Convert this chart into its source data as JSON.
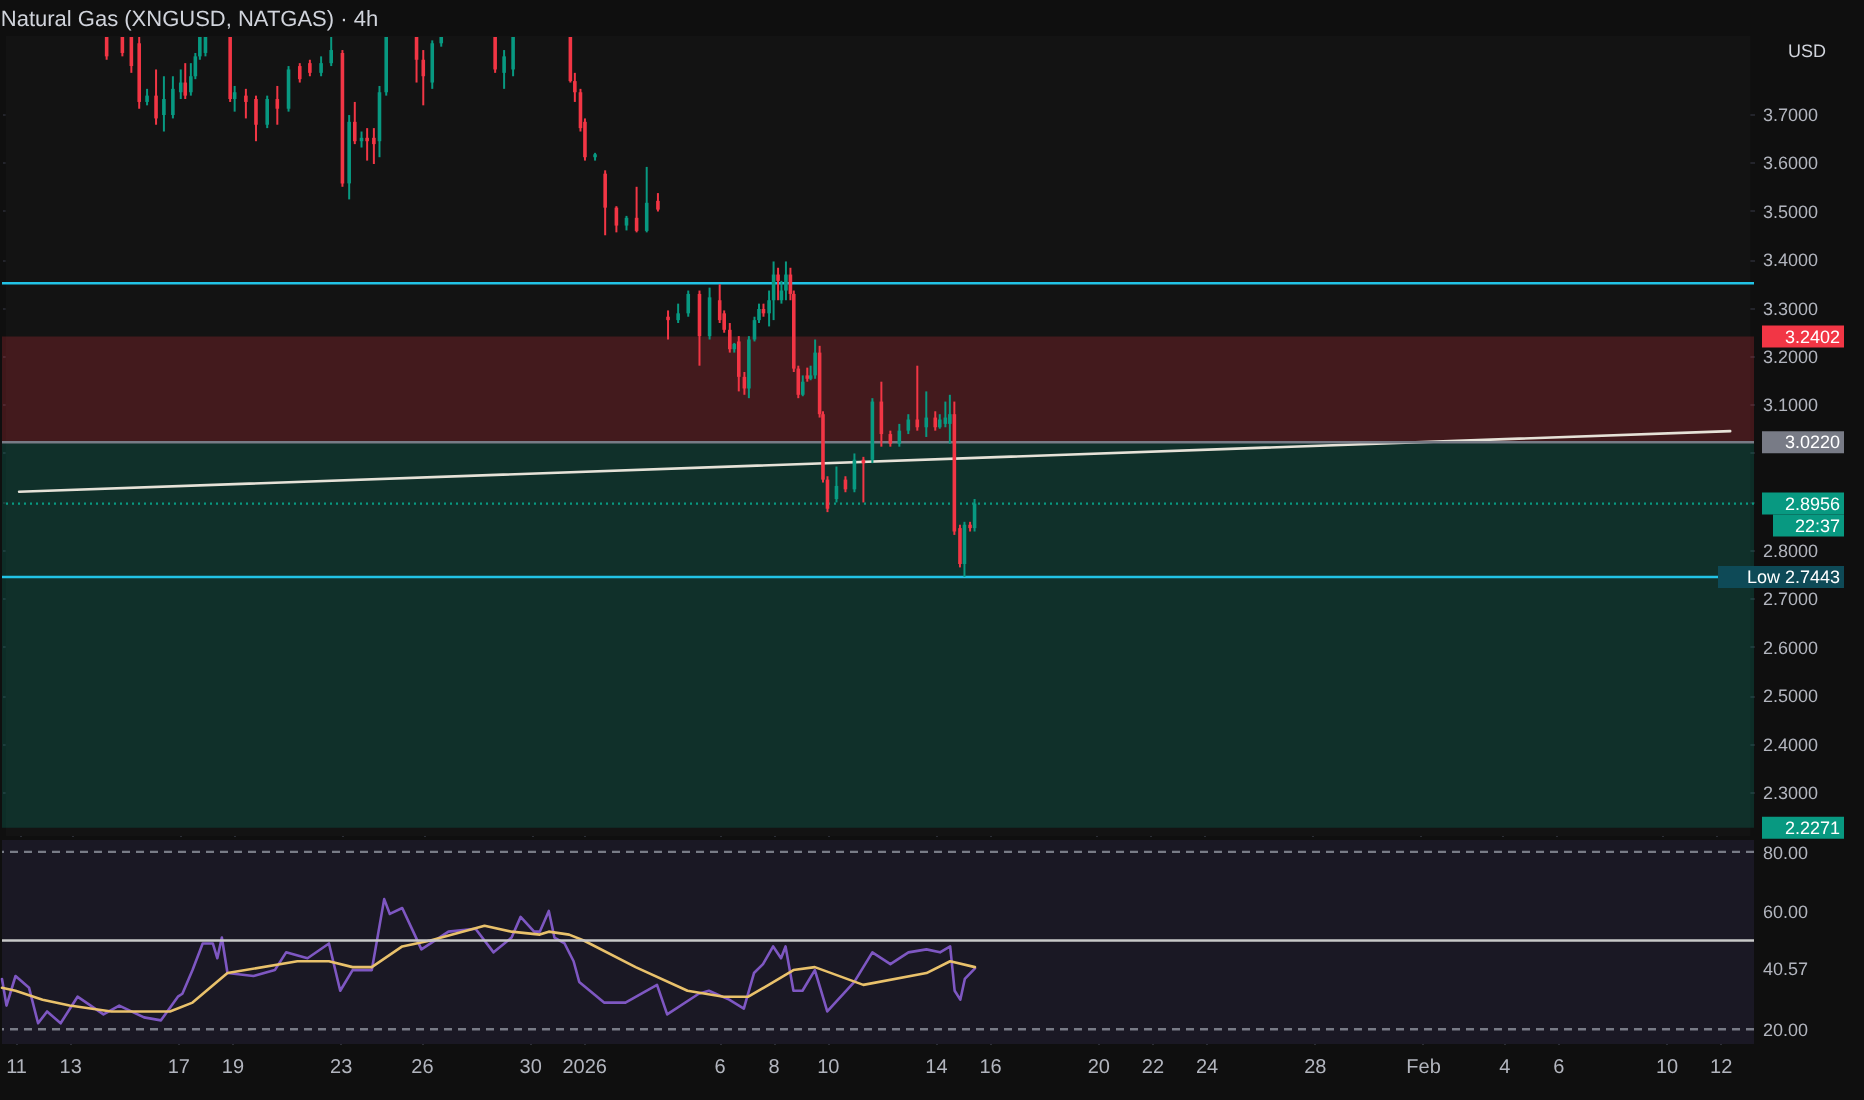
{
  "chart_data": [
    {
      "type": "candlestick",
      "title": "Natural Gas (XNGUSD, NATGAS) · 4h",
      "ylabel": "USD",
      "grid": true,
      "tick_labels": "y",
      "xlim": [
        "2025-12-10T12:00",
        "2026-02-13T06:00"
      ],
      "ylim": [
        2.21,
        3.86
      ],
      "xticks": [
        {
          "value": "2025-12-11",
          "label": null
        },
        {
          "value": "2025-12-13",
          "label": null
        },
        {
          "value": "2025-12-17",
          "label": null
        },
        {
          "value": "2025-12-19",
          "label": null
        },
        {
          "value": "2025-12-23",
          "label": null
        },
        {
          "value": "2025-12-26",
          "label": null
        },
        {
          "value": "2025-12-30",
          "label": null
        },
        {
          "value": "2026-01-01",
          "label": null
        },
        {
          "value": "2026-01-06",
          "label": null
        },
        {
          "value": "2026-01-08",
          "label": null
        },
        {
          "value": "2026-01-10",
          "label": null
        },
        {
          "value": "2026-01-14",
          "label": null
        },
        {
          "value": "2026-01-16",
          "label": null
        },
        {
          "value": "2026-01-20",
          "label": null
        },
        {
          "value": "2026-01-22",
          "label": null
        },
        {
          "value": "2026-01-24",
          "label": null
        },
        {
          "value": "2026-01-28",
          "label": null
        },
        {
          "value": "2026-02-01",
          "label": null
        },
        {
          "value": "2026-02-04",
          "label": null
        },
        {
          "value": "2026-02-06",
          "label": null
        },
        {
          "value": "2026-02-10",
          "label": null
        },
        {
          "value": "2026-02-12",
          "label": null
        }
      ],
      "yticks": [
        {
          "value": 2.3,
          "label": "2.3000"
        },
        {
          "value": 2.4,
          "label": "2.4000"
        },
        {
          "value": 2.5,
          "label": "2.5000"
        },
        {
          "value": 2.6,
          "label": "2.6000"
        },
        {
          "value": 2.7,
          "label": "2.7000"
        },
        {
          "value": 2.8,
          "label": "2.8000"
        },
        {
          "value": 2.9,
          "label": null
        },
        {
          "value": 3.0,
          "label": null
        },
        {
          "value": 3.1,
          "label": "3.1000"
        },
        {
          "value": 3.2,
          "label": "3.2000"
        },
        {
          "value": 3.3,
          "label": "3.3000"
        },
        {
          "value": 3.4,
          "label": "3.4000"
        },
        {
          "value": 3.5,
          "label": "3.5000"
        },
        {
          "value": 3.6,
          "label": "3.6000"
        },
        {
          "value": 3.7,
          "label": "3.7000"
        }
      ],
      "x": [
        "2025-12-14T06:00",
        "2025-12-14T20:00",
        "2025-12-15T04:00",
        "2025-12-15T11:00",
        "2025-12-15T18:00",
        "2025-12-16T02:00",
        "2025-12-16T09:00",
        "2025-12-16T17:00",
        "2025-12-17T00:00",
        "2025-12-17T04:00",
        "2025-12-17T09:00",
        "2025-12-17T13:00",
        "2025-12-17T17:00",
        "2025-12-17T22:00",
        "2025-12-18T20:00",
        "2025-12-19T00:00",
        "2025-12-19T10:00",
        "2025-12-19T19:00",
        "2025-12-20T05:00",
        "2025-12-20T14:00",
        "2025-12-21T00:00",
        "2025-12-21T10:00",
        "2025-12-21T19:00",
        "2025-12-22T05:00",
        "2025-12-22T14:00",
        "2025-12-23T00:00",
        "2025-12-23T06:00",
        "2025-12-23T11:00",
        "2025-12-23T17:00",
        "2025-12-23T22:00",
        "2025-12-24T04:00",
        "2025-12-24T09:00",
        "2025-12-24T15:00",
        "2025-12-25T18:00",
        "2025-12-26T00:00",
        "2025-12-26T08:00",
        "2025-12-26T16:00",
        "2025-12-28T16:00",
        "2025-12-29T00:00",
        "2025-12-29T08:00",
        "2025-12-31T11:00",
        "2025-12-31T15:00",
        "2025-12-31T20:00",
        "2026-01-01T00:00",
        "2026-01-01T09:00",
        "2026-01-01T18:00",
        "2026-01-02T04:00",
        "2026-01-02T13:00",
        "2026-01-02T22:00",
        "2026-01-03T07:00",
        "2026-01-03T17:00",
        "2026-01-04T02:00",
        "2026-01-04T11:00",
        "2026-01-04T20:00",
        "2026-01-05T06:00",
        "2026-01-05T15:00",
        "2026-01-06T00:00",
        "2026-01-06T04:00",
        "2026-01-06T09:00",
        "2026-01-06T13:00",
        "2026-01-06T17:00",
        "2026-01-06T22:00",
        "2026-01-07T02:00",
        "2026-01-07T07:00",
        "2026-01-07T11:00",
        "2026-01-07T15:00",
        "2026-01-07T20:00",
        "2026-01-08T00:00",
        "2026-01-08T04:00",
        "2026-01-08T07:00",
        "2026-01-08T11:00",
        "2026-01-08T15:00",
        "2026-01-08T18:00",
        "2026-01-08T22:00",
        "2026-01-09T02:00",
        "2026-01-09T06:00",
        "2026-01-09T09:00",
        "2026-01-09T13:00",
        "2026-01-09T17:00",
        "2026-01-09T20:00",
        "2026-01-10T00:00",
        "2026-01-10T08:00",
        "2026-01-10T16:00",
        "2026-01-11T00:00",
        "2026-01-11T08:00",
        "2026-01-11T16:00",
        "2026-01-12T00:00",
        "2026-01-12T08:00",
        "2026-01-12T16:00",
        "2026-01-13T00:00",
        "2026-01-13T08:00",
        "2026-01-13T16:00",
        "2026-01-14T00:00",
        "2026-01-14T04:00",
        "2026-01-14T09:00",
        "2026-01-14T13:00",
        "2026-01-14T17:00",
        "2026-01-14T22:00",
        "2026-01-15T02:00",
        "2026-01-15T07:00",
        "2026-01-15T11:00"
      ],
      "ohlc": [
        [
          3.858,
          3.858,
          3.811,
          3.818
        ],
        [
          3.858,
          3.858,
          3.818,
          3.825
        ],
        [
          3.858,
          3.858,
          3.784,
          3.798
        ],
        [
          3.845,
          3.858,
          3.71,
          3.724
        ],
        [
          3.724,
          3.751,
          3.717,
          3.737
        ],
        [
          3.737,
          3.791,
          3.677,
          3.69
        ],
        [
          3.697,
          3.777,
          3.663,
          3.73
        ],
        [
          3.697,
          3.777,
          3.69,
          3.751
        ],
        [
          3.744,
          3.791,
          3.73,
          3.764
        ],
        [
          3.764,
          3.804,
          3.73,
          3.737
        ],
        [
          3.744,
          3.804,
          3.737,
          3.777
        ],
        [
          3.777,
          3.825,
          3.771,
          3.818
        ],
        [
          3.818,
          3.858,
          3.811,
          3.858
        ],
        [
          3.825,
          3.858,
          3.818,
          3.858
        ],
        [
          3.858,
          3.858,
          3.724,
          3.73
        ],
        [
          3.73,
          3.757,
          3.704,
          3.744
        ],
        [
          3.737,
          3.751,
          3.69,
          3.724
        ],
        [
          3.73,
          3.737,
          3.643,
          3.677
        ],
        [
          3.677,
          3.737,
          3.67,
          3.73
        ],
        [
          3.73,
          3.757,
          3.677,
          3.71
        ],
        [
          3.71,
          3.798,
          3.704,
          3.791
        ],
        [
          3.798,
          3.804,
          3.764,
          3.771
        ],
        [
          3.804,
          3.811,
          3.777,
          3.784
        ],
        [
          3.784,
          3.818,
          3.777,
          3.804
        ],
        [
          3.804,
          3.858,
          3.798,
          3.831
        ],
        [
          3.825,
          3.831,
          3.549,
          3.556
        ],
        [
          3.556,
          3.697,
          3.523,
          3.683
        ],
        [
          3.683,
          3.724,
          3.637,
          3.643
        ],
        [
          3.643,
          3.663,
          3.63,
          3.65
        ],
        [
          3.65,
          3.67,
          3.603,
          3.643
        ],
        [
          3.65,
          3.67,
          3.596,
          3.637
        ],
        [
          3.643,
          3.757,
          3.61,
          3.744
        ],
        [
          3.744,
          3.858,
          3.737,
          3.858
        ],
        [
          3.858,
          3.858,
          3.764,
          3.811
        ],
        [
          3.811,
          3.831,
          3.717,
          3.777
        ],
        [
          3.764,
          3.851,
          3.751,
          3.845
        ],
        [
          3.845,
          3.858,
          3.838,
          3.858
        ],
        [
          3.858,
          3.858,
          3.784,
          3.791
        ],
        [
          3.784,
          3.831,
          3.751,
          3.818
        ],
        [
          3.791,
          3.858,
          3.777,
          3.858
        ],
        [
          3.858,
          3.858,
          3.764,
          3.767
        ],
        [
          3.767,
          3.784,
          3.724,
          3.744
        ],
        [
          3.744,
          3.751,
          3.663,
          3.67
        ],
        [
          3.683,
          3.69,
          3.603,
          3.61
        ],
        [
          3.61,
          3.619,
          3.603,
          3.616
        ],
        [
          3.576,
          3.583,
          3.449,
          3.506
        ],
        [
          3.506,
          3.509,
          3.455,
          3.469
        ],
        [
          3.469,
          3.489,
          3.459,
          3.485
        ],
        [
          3.485,
          3.549,
          3.455,
          3.458
        ],
        [
          3.458,
          3.59,
          3.455,
          3.516
        ],
        [
          3.52,
          3.536,
          3.498,
          3.502
        ],
        [
          3.281,
          3.294,
          3.234,
          3.274
        ],
        [
          3.274,
          3.308,
          3.268,
          3.288
        ],
        [
          3.288,
          3.335,
          3.281,
          3.328
        ],
        [
          3.328,
          3.335,
          3.18,
          3.241
        ],
        [
          3.241,
          3.341,
          3.234,
          3.321
        ],
        [
          3.315,
          3.348,
          3.268,
          3.274
        ],
        [
          3.288,
          3.294,
          3.248,
          3.254
        ],
        [
          3.254,
          3.268,
          3.207,
          3.214
        ],
        [
          3.214,
          3.227,
          3.207,
          3.225
        ],
        [
          3.23,
          3.241,
          3.127,
          3.157
        ],
        [
          3.157,
          3.167,
          3.12,
          3.133
        ],
        [
          3.133,
          3.241,
          3.113,
          3.234
        ],
        [
          3.234,
          3.281,
          3.23,
          3.274
        ],
        [
          3.274,
          3.308,
          3.268,
          3.297
        ],
        [
          3.297,
          3.308,
          3.281,
          3.288
        ],
        [
          3.288,
          3.335,
          3.261,
          3.315
        ],
        [
          3.315,
          3.395,
          3.274,
          3.368
        ],
        [
          3.368,
          3.382,
          3.315,
          3.355
        ],
        [
          3.315,
          3.355,
          3.308,
          3.335
        ],
        [
          3.335,
          3.395,
          3.315,
          3.368
        ],
        [
          3.368,
          3.382,
          3.315,
          3.328
        ],
        [
          3.328,
          3.335,
          3.167,
          3.174
        ],
        [
          3.174,
          3.18,
          3.113,
          3.12
        ],
        [
          3.12,
          3.16,
          3.117,
          3.147
        ],
        [
          3.16,
          3.176,
          3.147,
          3.153
        ],
        [
          3.153,
          3.18,
          3.15,
          3.16
        ],
        [
          3.16,
          3.234,
          3.153,
          3.207
        ],
        [
          3.207,
          3.221,
          3.073,
          3.08
        ],
        [
          3.08,
          3.086,
          2.939,
          2.945
        ],
        [
          2.945,
          2.952,
          2.878,
          2.885
        ],
        [
          2.905,
          2.972,
          2.898,
          2.932
        ],
        [
          2.945,
          2.952,
          2.919,
          2.925
        ],
        [
          2.925,
          2.999,
          2.919,
          2.986
        ],
        [
          2.986,
          2.992,
          2.898,
          2.979
        ],
        [
          2.986,
          3.113,
          2.979,
          3.106
        ],
        [
          3.106,
          3.147,
          3.013,
          3.039
        ],
        [
          3.039,
          3.046,
          3.013,
          3.019
        ],
        [
          3.019,
          3.06,
          3.013,
          3.046
        ],
        [
          3.046,
          3.08,
          3.039,
          3.069
        ],
        [
          3.069,
          3.18,
          3.046,
          3.053
        ],
        [
          3.053,
          3.127,
          3.033,
          3.073
        ],
        [
          3.073,
          3.086,
          3.046,
          3.053
        ],
        [
          3.053,
          3.08,
          3.05,
          3.069
        ],
        [
          3.06,
          3.106,
          3.053,
          3.073
        ],
        [
          3.06,
          3.12,
          3.019,
          3.08
        ],
        [
          3.08,
          3.106,
          2.831,
          2.838
        ],
        [
          2.845,
          2.852,
          2.764,
          2.771
        ],
        [
          2.771,
          2.858,
          2.7443,
          2.852
        ],
        [
          2.852,
          2.858,
          2.838,
          2.845
        ],
        [
          2.845,
          2.905,
          2.838,
          2.8956
        ]
      ],
      "series": [
        {
          "type": "line",
          "x": [
            "2025-12-11T00:00",
            "2026-02-12T12:00"
          ],
          "values": [
            2.92,
            3.045
          ],
          "color": "#e6e2d8"
        }
      ],
      "bands": [
        {
          "axis": "y",
          "from": 3.022,
          "to": 3.2402,
          "label": "3.2402",
          "color": "#f23645"
        },
        {
          "axis": "y",
          "from": 3.022,
          "to": 2.2271,
          "label": "2.2271",
          "color": "#089981"
        }
      ],
      "ref_lines": [
        {
          "axis": "y",
          "value": 3.35,
          "color": "#22c3e6"
        },
        {
          "axis": "y",
          "value": 2.7443,
          "label": "Low 2.7443",
          "color": "#22c3e6"
        },
        {
          "axis": "y",
          "value": 3.022,
          "label": "3.0220",
          "color": "#787b86"
        },
        {
          "axis": "y",
          "value": 2.8956,
          "label": "2.8956",
          "color": "#089981",
          "line_style": "dotted"
        }
      ],
      "annotations": [
        "22:37"
      ]
    },
    {
      "type": "line",
      "grid": "x",
      "xlim": [
        "2025-12-10T12:00",
        "2026-02-13T06:00"
      ],
      "ylim": [
        15,
        84
      ],
      "xticks": [
        {
          "value": "2025-12-11",
          "label": "11"
        },
        {
          "value": "2025-12-13",
          "label": "13"
        },
        {
          "value": "2025-12-17",
          "label": "17"
        },
        {
          "value": "2025-12-19",
          "label": "19"
        },
        {
          "value": "2025-12-23",
          "label": "23"
        },
        {
          "value": "2025-12-26",
          "label": "26"
        },
        {
          "value": "2025-12-30",
          "label": "30"
        },
        {
          "value": "2026-01-01",
          "label": "2026"
        },
        {
          "value": "2026-01-06",
          "label": "6"
        },
        {
          "value": "2026-01-08",
          "label": "8"
        },
        {
          "value": "2026-01-10",
          "label": "10"
        },
        {
          "value": "2026-01-14",
          "label": "14"
        },
        {
          "value": "2026-01-16",
          "label": "16"
        },
        {
          "value": "2026-01-20",
          "label": "20"
        },
        {
          "value": "2026-01-22",
          "label": "22"
        },
        {
          "value": "2026-01-24",
          "label": "24"
        },
        {
          "value": "2026-01-28",
          "label": "28"
        },
        {
          "value": "2026-02-01",
          "label": "Feb"
        },
        {
          "value": "2026-02-04",
          "label": "4"
        },
        {
          "value": "2026-02-06",
          "label": "6"
        },
        {
          "value": "2026-02-10",
          "label": "10"
        },
        {
          "value": "2026-02-12",
          "label": "12"
        }
      ],
      "yticks": [
        {
          "value": 20,
          "label": "20.00"
        },
        {
          "value": 40.57,
          "label": "40.57"
        },
        {
          "value": 60,
          "label": "60.00"
        },
        {
          "value": 80,
          "label": "80.00"
        }
      ],
      "x": [
        "2025-12-10T12:00",
        "2025-12-10T16:00",
        "2025-12-11T00:00",
        "2025-12-11T12:00",
        "2025-12-11T20:00",
        "2025-12-12T04:00",
        "2025-12-12T16:00",
        "2025-12-13T07:00",
        "2025-12-14T06:00",
        "2025-12-14T20:00",
        "2025-12-15T18:00",
        "2025-12-16T09:00",
        "2025-12-17T00:00",
        "2025-12-17T04:00",
        "2025-12-17T13:00",
        "2025-12-17T22:00",
        "2025-12-18T07:00",
        "2025-12-18T11:00",
        "2025-12-18T15:00",
        "2025-12-18T20:00",
        "2025-12-19T19:00",
        "2025-12-20T14:00",
        "2025-12-21T00:00",
        "2025-12-21T19:00",
        "2025-12-22T14:00",
        "2025-12-23T00:00",
        "2025-12-23T11:00",
        "2025-12-24T04:00",
        "2025-12-24T15:00",
        "2025-12-24T20:00",
        "2025-12-25T07:00",
        "2025-12-25T18:00",
        "2025-12-26T00:00",
        "2025-12-27T00:00",
        "2025-12-28T00:00",
        "2025-12-28T16:00",
        "2025-12-29T08:00",
        "2025-12-29T16:00",
        "2025-12-30T04:00",
        "2025-12-30T09:00",
        "2025-12-30T17:00",
        "2025-12-30T22:00",
        "2025-12-31T07:00",
        "2025-12-31T15:00",
        "2025-12-31T20:00",
        "2026-01-01T18:00",
        "2026-01-02T13:00",
        "2026-01-03T17:00",
        "2026-01-04T02:00",
        "2026-01-05T06:00",
        "2026-01-05T15:00",
        "2026-01-06T09:00",
        "2026-01-06T22:00",
        "2026-01-07T07:00",
        "2026-01-07T15:00",
        "2026-01-08T00:00",
        "2026-01-08T07:00",
        "2026-01-08T11:00",
        "2026-01-08T18:00",
        "2026-01-09T02:00",
        "2026-01-09T13:00",
        "2026-01-10T00:00",
        "2026-01-11T00:00",
        "2026-01-11T16:00",
        "2026-01-12T08:00",
        "2026-01-13T00:00",
        "2026-01-13T16:00",
        "2026-01-14T04:00",
        "2026-01-14T13:00",
        "2026-01-14T17:00",
        "2026-01-14T22:00",
        "2026-01-15T02:00",
        "2026-01-15T11:00"
      ],
      "series": [
        {
          "color": "#7e57c2",
          "values": [
            37,
            28,
            38,
            34,
            22,
            26,
            22,
            31,
            25,
            28,
            24,
            23,
            31,
            32,
            40,
            49,
            49,
            44,
            51,
            39,
            38,
            40,
            46,
            44,
            49,
            33,
            40,
            40,
            64,
            59,
            61,
            52,
            47,
            53,
            54,
            46,
            51,
            58,
            53,
            53,
            60,
            51,
            49,
            43,
            36,
            29,
            29,
            35,
            25,
            32,
            33,
            30,
            27,
            39,
            42,
            48,
            44,
            48,
            33,
            33,
            40,
            26,
            36,
            46,
            42,
            46,
            47,
            46,
            48,
            33,
            30,
            37,
            40.57
          ]
        },
        {
          "color": "#e9c16b",
          "x": [
            "2025-12-10T12:00",
            "2025-12-11T00:00",
            "2025-12-12T00:00",
            "2025-12-13T00:00",
            "2025-12-14T13:00",
            "2025-12-16T17:00",
            "2025-12-17T13:00",
            "2025-12-18T20:00",
            "2025-12-21T10:00",
            "2025-12-22T14:00",
            "2025-12-23T11:00",
            "2025-12-24T04:00",
            "2025-12-25T07:00",
            "2025-12-26T08:00",
            "2025-12-28T08:00",
            "2025-12-29T08:00",
            "2025-12-30T09:00",
            "2025-12-30T17:00",
            "2025-12-31T11:00",
            "2026-01-01T00:00",
            "2026-01-02T22:00",
            "2026-01-04T20:00",
            "2026-01-06T04:00",
            "2026-01-07T02:00",
            "2026-01-07T20:00",
            "2026-01-08T18:00",
            "2026-01-09T13:00",
            "2026-01-11T08:00",
            "2026-01-13T16:00",
            "2026-01-14T13:00",
            "2026-01-15T11:00"
          ],
          "values": [
            34,
            33,
            30,
            28,
            26,
            26,
            29,
            39,
            43,
            43,
            41,
            41,
            48,
            50,
            55,
            53,
            52,
            53,
            52,
            50,
            41,
            33,
            31,
            31,
            35,
            40,
            41,
            35,
            39,
            43,
            41
          ]
        }
      ],
      "ref_lines": [
        {
          "axis": "y",
          "value": 80,
          "color": "#787b86",
          "line_style": "dashed"
        },
        {
          "axis": "y",
          "value": 50,
          "color": "#c8c8c8"
        },
        {
          "axis": "y",
          "value": 20,
          "color": "#787b86",
          "line_style": "dashed"
        }
      ]
    }
  ]
}
